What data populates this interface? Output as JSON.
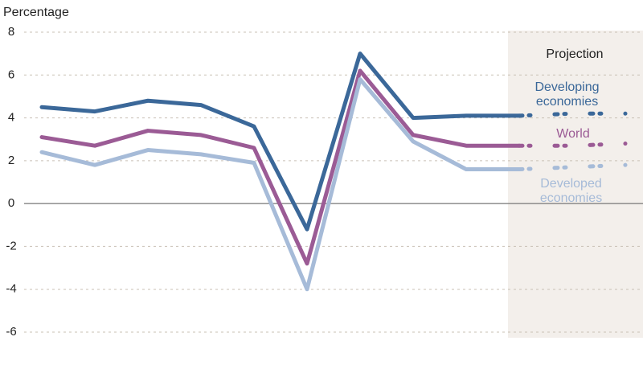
{
  "chart_data": {
    "type": "line",
    "y_label": "Percentage",
    "annotation": "Projection",
    "categories": [
      null,
      null,
      null,
      null,
      null,
      null,
      null,
      null,
      null,
      null,
      null,
      null
    ],
    "series": [
      {
        "name": "Developing economies",
        "color": "#3b6899",
        "values": [
          4.5,
          4.3,
          4.8,
          4.6,
          3.6,
          -1.2,
          7.0,
          4.0,
          4.1,
          4.1,
          4.2,
          4.2
        ]
      },
      {
        "name": "World",
        "color": "#9b5b95",
        "values": [
          3.1,
          2.7,
          3.4,
          3.2,
          2.6,
          -2.8,
          6.2,
          3.2,
          2.7,
          2.7,
          2.7,
          2.8
        ]
      },
      {
        "name": "Developed economies",
        "color": "#a6bbd8",
        "values": [
          2.4,
          1.8,
          2.5,
          2.3,
          1.9,
          -4.0,
          5.8,
          2.9,
          1.6,
          1.6,
          1.7,
          1.8
        ]
      }
    ],
    "ylim": [
      -6,
      8
    ],
    "yticks": [
      -6,
      -4,
      -2,
      0,
      2,
      4,
      6,
      8
    ],
    "grid": true
  }
}
